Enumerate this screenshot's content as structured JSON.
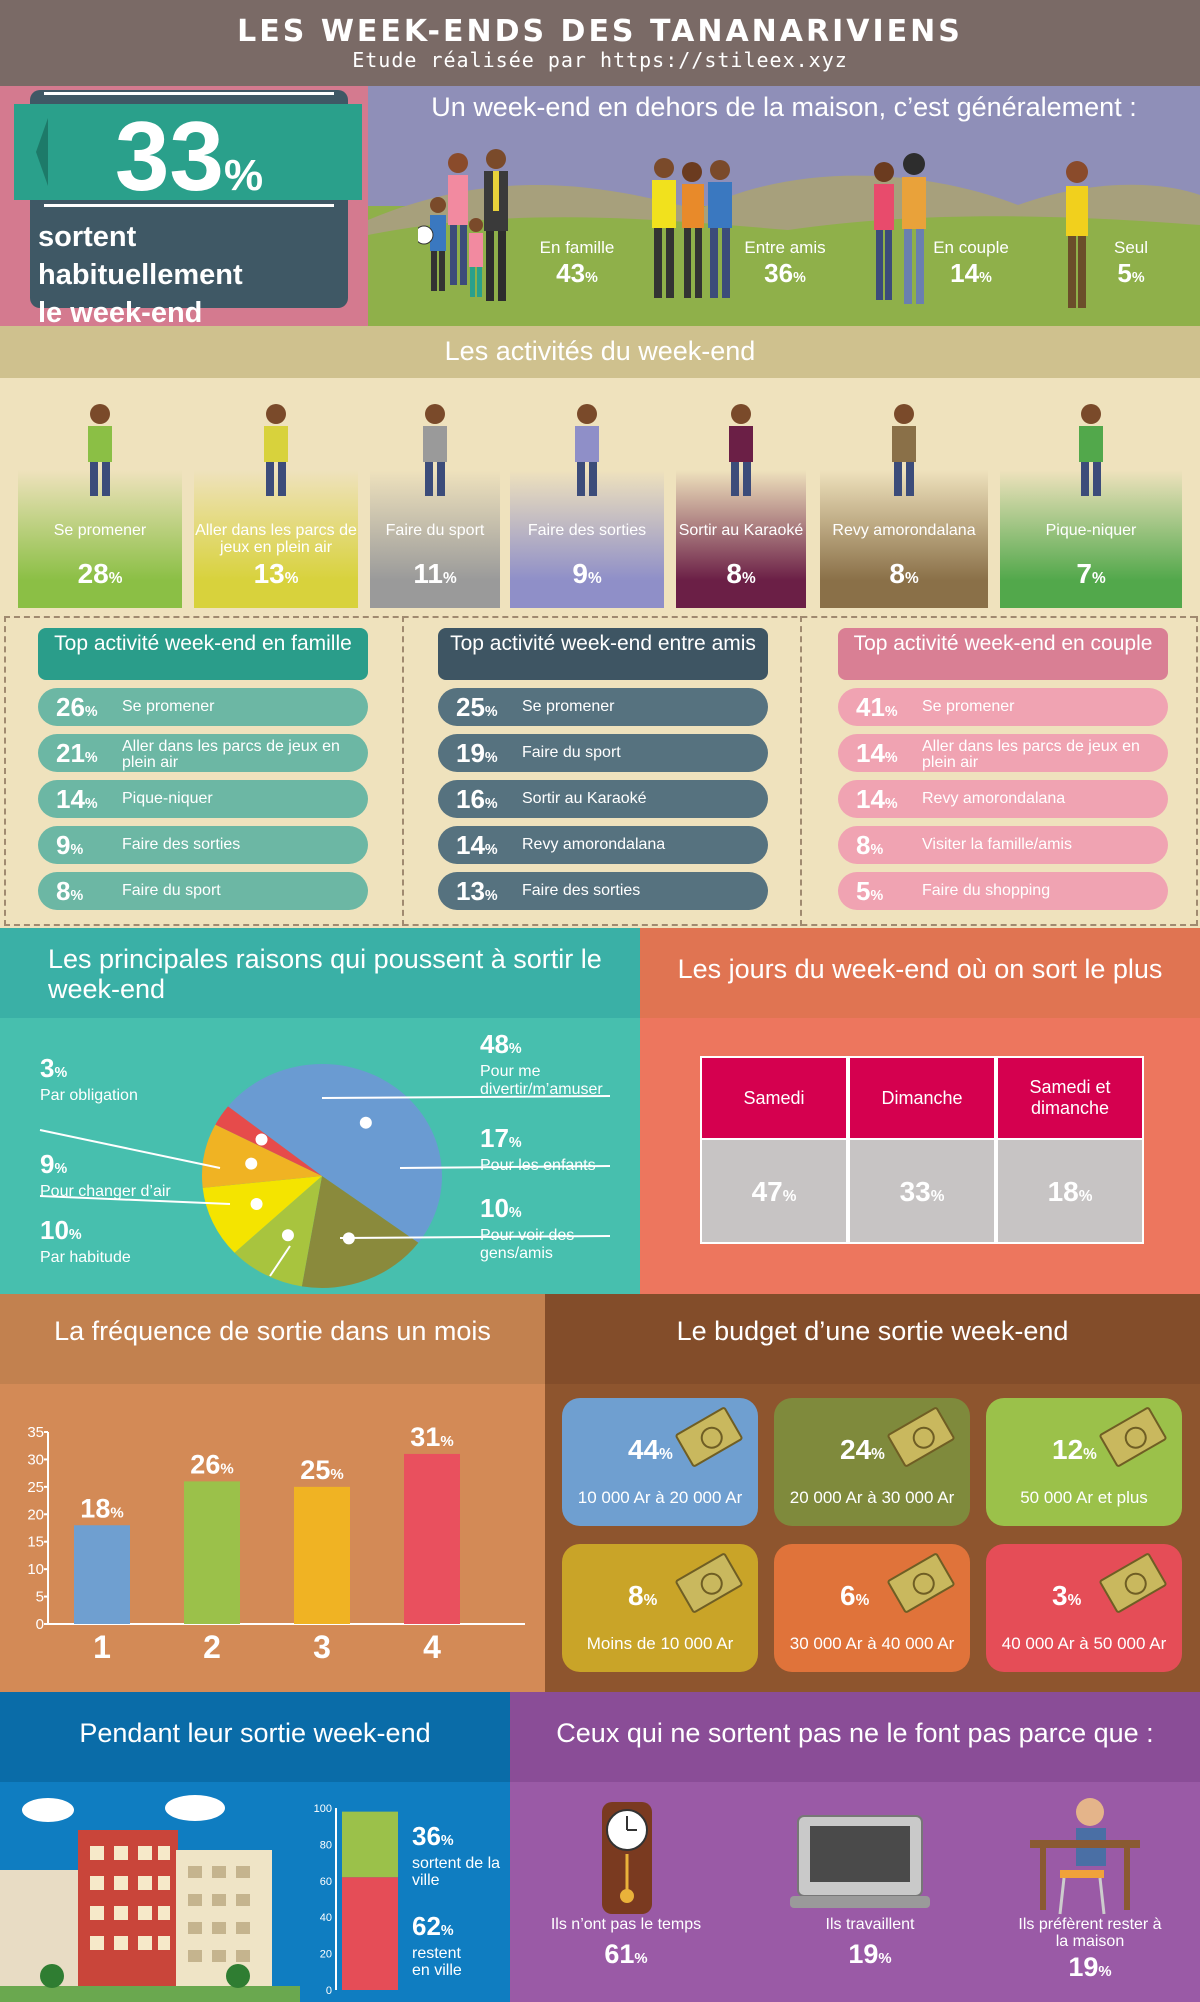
{
  "header": {
    "title": "LES WEEK-ENDS DES TANANARIVIENS",
    "subtitle": "Etude réalisée par https://stileex.xyz"
  },
  "intro": {
    "big_value": "33",
    "big_unit": "%",
    "big_label_line1": "sortent habituellement",
    "big_label_line2": "le week-end"
  },
  "company": {
    "title": "Un week-end en dehors de la maison, c’est généralement :",
    "groups": [
      {
        "label": "En famille",
        "value": "43",
        "unit": "%"
      },
      {
        "label": "Entre amis",
        "value": "36",
        "unit": "%"
      },
      {
        "label": "En couple",
        "value": "14",
        "unit": "%"
      },
      {
        "label": "Seul",
        "value": "5",
        "unit": "%"
      }
    ]
  },
  "activities": {
    "title": "Les activités du week-end",
    "items": [
      {
        "label": "Se promener",
        "value": "28",
        "unit": "%",
        "color": "#8bbf45"
      },
      {
        "label": "Aller dans les parcs de jeux en plein air",
        "value": "13",
        "unit": "%",
        "color": "#d8d23c"
      },
      {
        "label": "Faire du sport",
        "value": "11",
        "unit": "%",
        "color": "#9a9a9a"
      },
      {
        "label": "Faire des sorties",
        "value": "9",
        "unit": "%",
        "color": "#8f8fc8"
      },
      {
        "label": "Sortir au Karaoké",
        "value": "8",
        "unit": "%",
        "color": "#6b1f46"
      },
      {
        "label": "Revy amorondalana",
        "value": "8",
        "unit": "%",
        "color": "#8a7048"
      },
      {
        "label": "Pique-niquer",
        "value": "7",
        "unit": "%",
        "color": "#52a84b"
      }
    ]
  },
  "tops": [
    {
      "title": "Top activité week-end en famille",
      "head_color": "#2a9d8a",
      "row_color": "#6cb7a4",
      "rows": [
        {
          "value": "26",
          "unit": "%",
          "label": "Se promener"
        },
        {
          "value": "21",
          "unit": "%",
          "label": "Aller dans les parcs de jeux en plein air"
        },
        {
          "value": "14",
          "unit": "%",
          "label": "Pique-niquer"
        },
        {
          "value": "9",
          "unit": "%",
          "label": "Faire des sorties"
        },
        {
          "value": "8",
          "unit": "%",
          "label": "Faire du sport"
        }
      ]
    },
    {
      "title": "Top activité week-end entre amis",
      "head_color": "#3e5563",
      "row_color": "#56727f",
      "rows": [
        {
          "value": "25",
          "unit": "%",
          "label": "Se promener"
        },
        {
          "value": "19",
          "unit": "%",
          "label": "Faire du sport"
        },
        {
          "value": "16",
          "unit": "%",
          "label": "Sortir au Karaoké"
        },
        {
          "value": "14",
          "unit": "%",
          "label": "Revy amorondalana"
        },
        {
          "value": "13",
          "unit": "%",
          "label": "Faire des sorties"
        }
      ]
    },
    {
      "title": "Top activité week-end en couple",
      "head_color": "#d97f94",
      "row_color": "#f0a3b2",
      "rows": [
        {
          "value": "41",
          "unit": "%",
          "label": "Se promener"
        },
        {
          "value": "14",
          "unit": "%",
          "label": "Aller dans les parcs de jeux en plein air"
        },
        {
          "value": "14",
          "unit": "%",
          "label": "Revy amorondalana"
        },
        {
          "value": "8",
          "unit": "%",
          "label": "Visiter la famille/amis"
        },
        {
          "value": "5",
          "unit": "%",
          "label": "Faire du shopping"
        }
      ]
    }
  ],
  "reasons": {
    "title": "Les principales raisons qui poussent à sortir le week-end",
    "items": [
      {
        "value": "48",
        "unit": "%",
        "label": "Pour me divertir/m’amuser",
        "color": "#6a9bd2"
      },
      {
        "value": "17",
        "unit": "%",
        "label": "Pour les enfants",
        "color": "#8a8a3c"
      },
      {
        "value": "10",
        "unit": "%",
        "label": "Pour voir des gens/amis",
        "color": "#a8c43e"
      },
      {
        "value": "10",
        "unit": "%",
        "label": "Par habitude",
        "color": "#f4e400"
      },
      {
        "value": "9",
        "unit": "%",
        "label": "Pour changer d’air",
        "color": "#f0b323"
      },
      {
        "value": "3",
        "unit": "%",
        "label": "Par obligation",
        "color": "#e64b4b"
      }
    ]
  },
  "days": {
    "title": "Les jours du week-end où on sort le plus",
    "items": [
      {
        "label": "Samedi",
        "value": "47",
        "unit": "%"
      },
      {
        "label": "Dimanche",
        "value": "33",
        "unit": "%"
      },
      {
        "label": "Samedi et dimanche",
        "value": "18",
        "unit": "%"
      }
    ]
  },
  "chart_data": {
    "type": "bar",
    "title": "La fréquence de sortie dans un mois",
    "categories": [
      "1",
      "2",
      "3",
      "4"
    ],
    "values": [
      18,
      26,
      25,
      31
    ],
    "value_labels": [
      "18",
      "26",
      "25",
      "31"
    ],
    "unit": "%",
    "colors": [
      "#6f9fd0",
      "#9bc14a",
      "#f0b323",
      "#e9505e"
    ],
    "yticks": [
      "0",
      "5",
      "10",
      "15",
      "20",
      "25",
      "30",
      "35"
    ],
    "ylim": [
      0,
      35
    ],
    "xlabel": "",
    "ylabel": ""
  },
  "budget": {
    "title": "Le budget d’une sortie week-end",
    "items": [
      {
        "value": "44",
        "unit": "%",
        "label": "10 000 Ar  à 20 000 Ar",
        "color": "#6f9fd0"
      },
      {
        "value": "24",
        "unit": "%",
        "label": "20 000 Ar à 30 000 Ar",
        "color": "#7f8a3c"
      },
      {
        "value": "12",
        "unit": "%",
        "label": "50 000 Ar et plus",
        "color": "#9bc14a"
      },
      {
        "value": "8",
        "unit": "%",
        "label": "Moins de  10 000 Ar",
        "color": "#c9a428"
      },
      {
        "value": "6",
        "unit": "%",
        "label": "30 000 Ar à 40 000 Ar",
        "color": "#e0733a"
      },
      {
        "value": "3",
        "unit": "%",
        "label": "40 000 Ar à 50 000 Ar",
        "color": "#e54d57"
      }
    ]
  },
  "city": {
    "title": "Pendant leur sortie week-end",
    "scale": [
      "100",
      "80",
      "60",
      "40",
      "20",
      "0"
    ],
    "out": {
      "value": "36",
      "unit": "%",
      "label": "sortent de la ville",
      "color": "#9bc14a"
    },
    "in": {
      "value": "62",
      "unit": "%",
      "label": "restent en ville",
      "color": "#e54d57"
    }
  },
  "nonout": {
    "title": "Ceux qui ne sortent pas ne le font pas parce que :",
    "items": [
      {
        "label": "Ils n’ont pas le temps",
        "value": "61",
        "unit": "%"
      },
      {
        "label": "Ils travaillent",
        "value": "19",
        "unit": "%"
      },
      {
        "label": "Ils préfèrent rester à la maison",
        "value": "19",
        "unit": "%"
      }
    ]
  }
}
